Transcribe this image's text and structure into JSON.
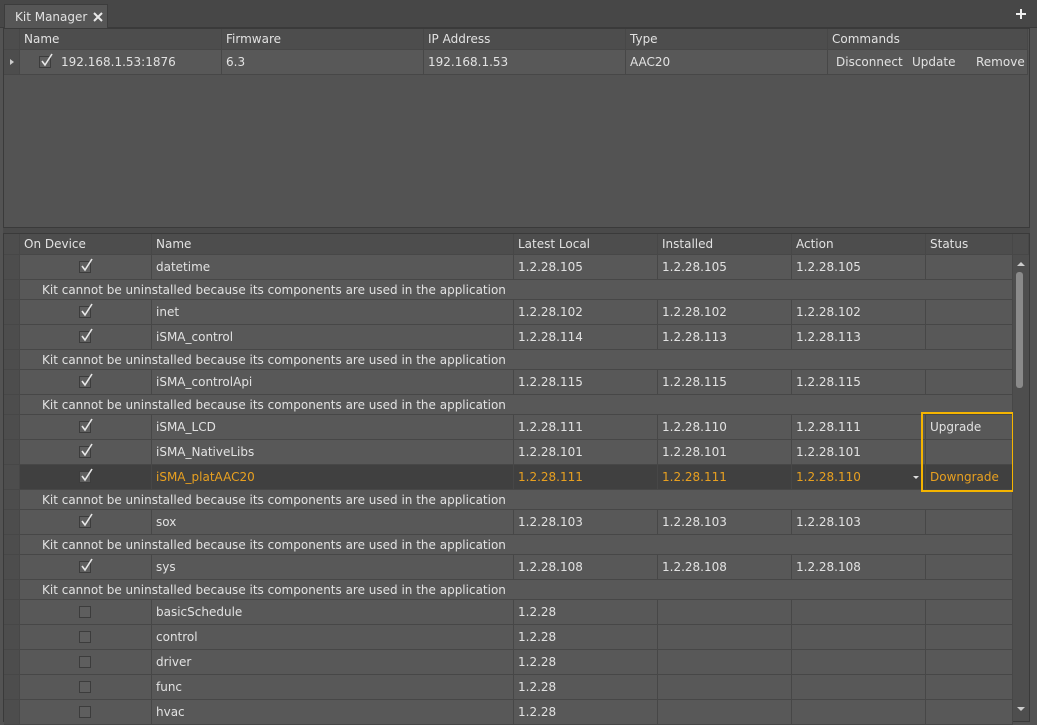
{
  "tab": {
    "title": "Kit Manager"
  },
  "devices": {
    "columns": [
      "Name",
      "Firmware",
      "IP Address",
      "Type",
      "Commands"
    ],
    "rows": [
      {
        "checked": true,
        "name": "192.168.1.53:1876",
        "firmware": "6.3",
        "ip": "192.168.1.53",
        "type": "AAC20",
        "commands": [
          "Disconnect",
          "Update",
          "Remove"
        ]
      }
    ]
  },
  "kits": {
    "columns": [
      "On Device",
      "Name",
      "Latest Local",
      "Installed",
      "Action",
      "Status"
    ],
    "rows": [
      {
        "checked": true,
        "name": "datetime",
        "latest_local": "1.2.28.105",
        "installed": "1.2.28.105",
        "action": "1.2.28.105",
        "note": "Kit cannot be uninstalled because its components are used in the application"
      },
      {
        "checked": true,
        "name": "inet",
        "latest_local": "1.2.28.102",
        "installed": "1.2.28.102",
        "action": "1.2.28.102"
      },
      {
        "checked": true,
        "name": "iSMA_control",
        "latest_local": "1.2.28.114",
        "installed": "1.2.28.113",
        "action": "1.2.28.113",
        "note": "Kit cannot be uninstalled because its components are used in the application"
      },
      {
        "checked": true,
        "name": "iSMA_controlApi",
        "latest_local": "1.2.28.115",
        "installed": "1.2.28.115",
        "action": "1.2.28.115",
        "note": "Kit cannot be uninstalled because its components are used in the application"
      },
      {
        "checked": true,
        "name": "iSMA_LCD",
        "latest_local": "1.2.28.111",
        "installed": "1.2.28.110",
        "action": "1.2.28.111",
        "status": "Upgrade"
      },
      {
        "checked": true,
        "name": "iSMA_NativeLibs",
        "latest_local": "1.2.28.101",
        "installed": "1.2.28.101",
        "action": "1.2.28.101"
      },
      {
        "checked": true,
        "selected": true,
        "name": "iSMA_platAAC20",
        "latest_local": "1.2.28.111",
        "installed": "1.2.28.111",
        "action": "1.2.28.110",
        "status": "Downgrade",
        "note": "Kit cannot be uninstalled because its components are used in the application"
      },
      {
        "checked": true,
        "name": "sox",
        "latest_local": "1.2.28.103",
        "installed": "1.2.28.103",
        "action": "1.2.28.103",
        "note": "Kit cannot be uninstalled because its components are used in the application"
      },
      {
        "checked": true,
        "name": "sys",
        "latest_local": "1.2.28.108",
        "installed": "1.2.28.108",
        "action": "1.2.28.108",
        "note": "Kit cannot be uninstalled because its components are used in the application"
      },
      {
        "checked": false,
        "name": "basicSchedule",
        "latest_local": "1.2.28"
      },
      {
        "checked": false,
        "name": "control",
        "latest_local": "1.2.28"
      },
      {
        "checked": false,
        "name": "driver",
        "latest_local": "1.2.28"
      },
      {
        "checked": false,
        "name": "func",
        "latest_local": "1.2.28"
      },
      {
        "checked": false,
        "name": "hvac",
        "latest_local": "1.2.28"
      }
    ]
  }
}
